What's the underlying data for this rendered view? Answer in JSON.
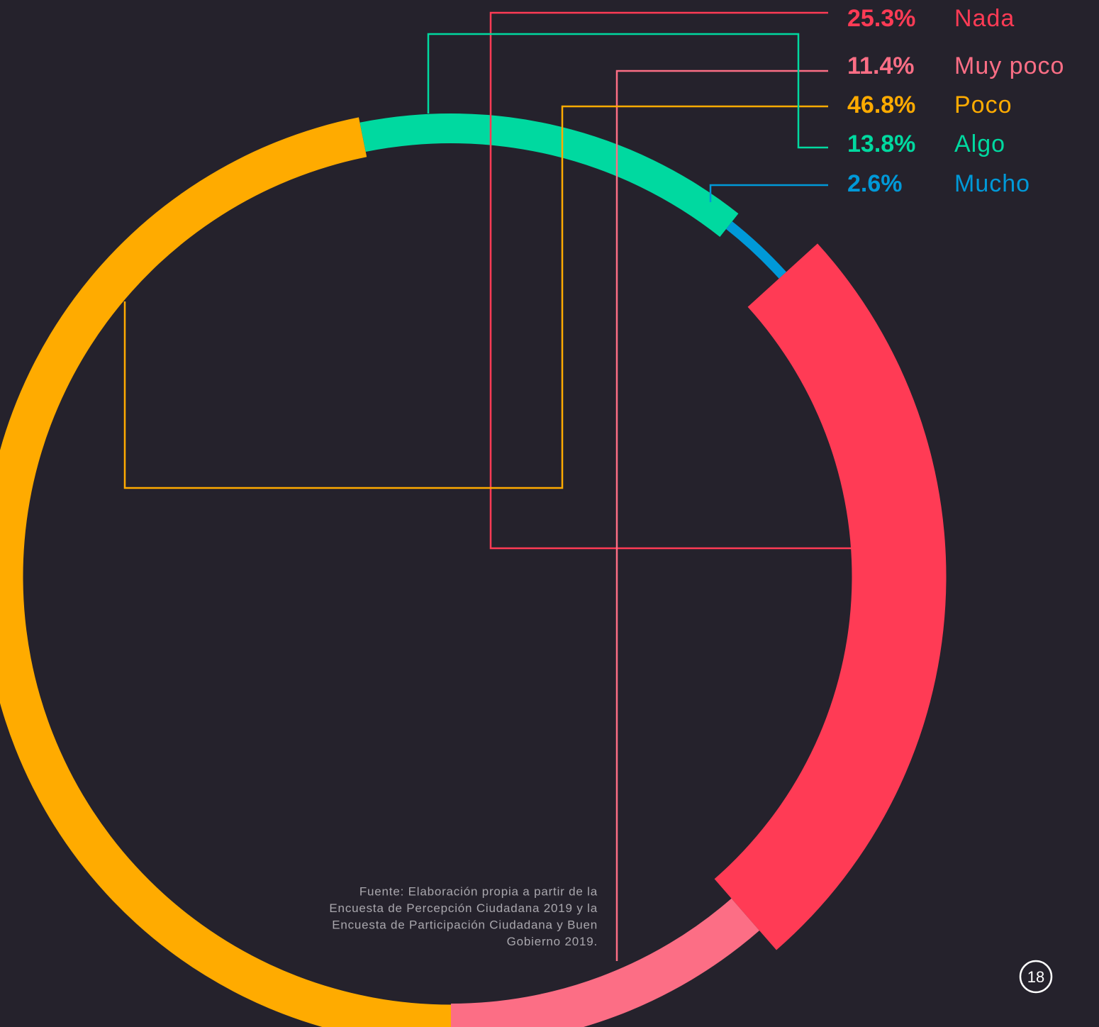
{
  "chart_data": {
    "type": "donut",
    "categories": [
      "Nada",
      "Muy poco",
      "Poco",
      "Algo",
      "Mucho"
    ],
    "values": [
      25.3,
      11.4,
      46.8,
      13.8,
      2.6
    ],
    "value_labels": [
      "25.3%",
      "11.4%",
      "46.8%",
      "13.8%",
      "2.6%"
    ],
    "colors": [
      "#ff3b55",
      "#fc6e85",
      "#ffab00",
      "#00d9a0",
      "#0099d8"
    ],
    "source": [
      "Fuente: Elaboración propia a partir de la",
      "Encuesta de Percepción Ciudadana 2019 y la",
      "Encuesta de Participación Ciudadana y Buen",
      "Gobierno 2019."
    ],
    "page_number": "18"
  }
}
